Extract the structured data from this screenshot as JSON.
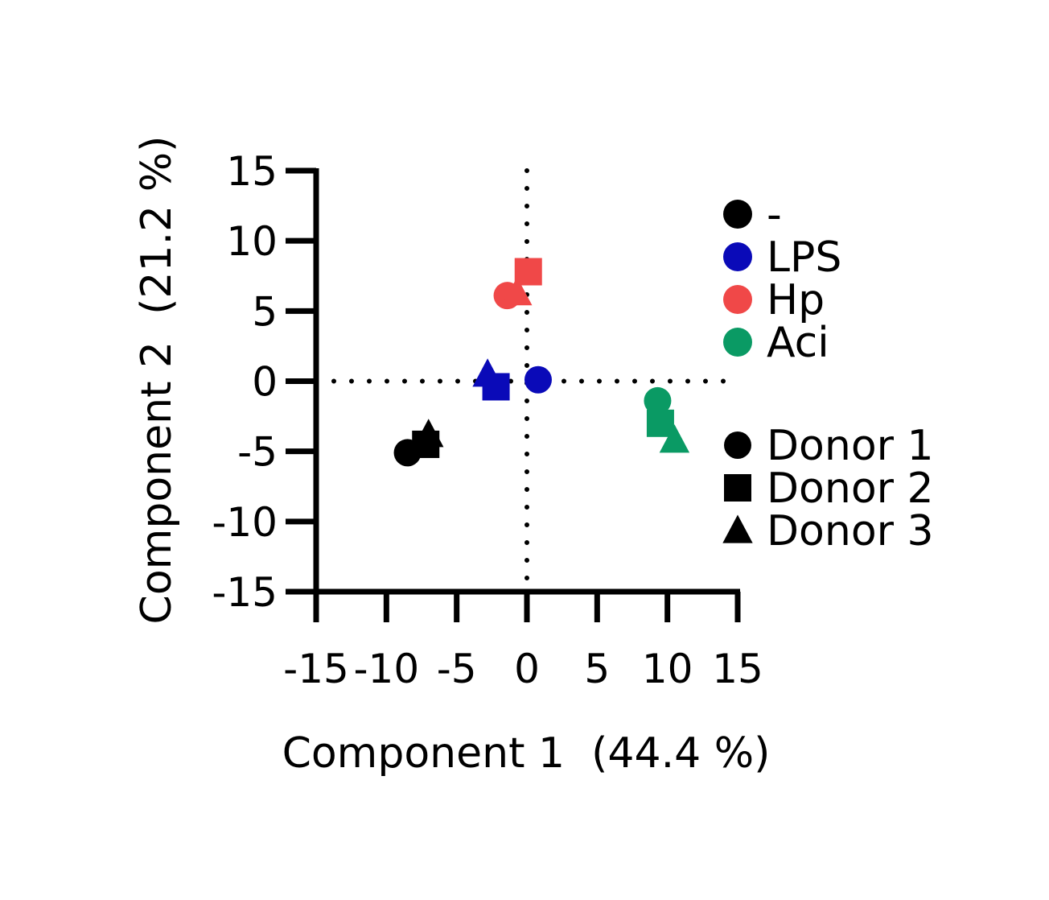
{
  "chart_data": {
    "type": "scatter",
    "xlabel": "Component 1  (44.4 %)",
    "ylabel": "Component 2  (21.2 %)",
    "xlim": [
      -15,
      15
    ],
    "ylim": [
      -15,
      15
    ],
    "x_ticks": [
      -15,
      -10,
      -5,
      0,
      5,
      10,
      15
    ],
    "y_ticks": [
      15,
      10,
      5,
      0,
      -5,
      -10,
      -15
    ],
    "reference_lines": {
      "x": 0,
      "y": 0,
      "style": "dotted"
    },
    "grid": false,
    "legend_placement": "right",
    "treatments": [
      {
        "name": "-",
        "color": "#000000"
      },
      {
        "name": "LPS",
        "color": "#0a0ab8"
      },
      {
        "name": "Hp",
        "color": "#f04848"
      },
      {
        "name": "Aci",
        "color": "#0a9a64"
      }
    ],
    "donors": [
      {
        "name": "Donor 1",
        "marker": "circle"
      },
      {
        "name": "Donor 2",
        "marker": "square"
      },
      {
        "name": "Donor 3",
        "marker": "triangle"
      }
    ],
    "points": [
      {
        "treatment": "-",
        "donor": "Donor 1",
        "x": -8.5,
        "y": -5.1
      },
      {
        "treatment": "-",
        "donor": "Donor 2",
        "x": -7.2,
        "y": -4.5
      },
      {
        "treatment": "-",
        "donor": "Donor 3",
        "x": -7.0,
        "y": -3.8
      },
      {
        "treatment": "LPS",
        "donor": "Donor 1",
        "x": 0.8,
        "y": 0.1
      },
      {
        "treatment": "LPS",
        "donor": "Donor 2",
        "x": -2.2,
        "y": -0.4
      },
      {
        "treatment": "LPS",
        "donor": "Donor 3",
        "x": -2.8,
        "y": 0.5
      },
      {
        "treatment": "Hp",
        "donor": "Donor 1",
        "x": -1.4,
        "y": 6.1
      },
      {
        "treatment": "Hp",
        "donor": "Donor 2",
        "x": 0.1,
        "y": 7.8
      },
      {
        "treatment": "Hp",
        "donor": "Donor 3",
        "x": -0.7,
        "y": 6.3
      },
      {
        "treatment": "Aci",
        "donor": "Donor 1",
        "x": 9.3,
        "y": -1.4
      },
      {
        "treatment": "Aci",
        "donor": "Donor 2",
        "x": 9.5,
        "y": -3.0
      },
      {
        "treatment": "Aci",
        "donor": "Donor 3",
        "x": 10.5,
        "y": -4.2
      }
    ]
  }
}
